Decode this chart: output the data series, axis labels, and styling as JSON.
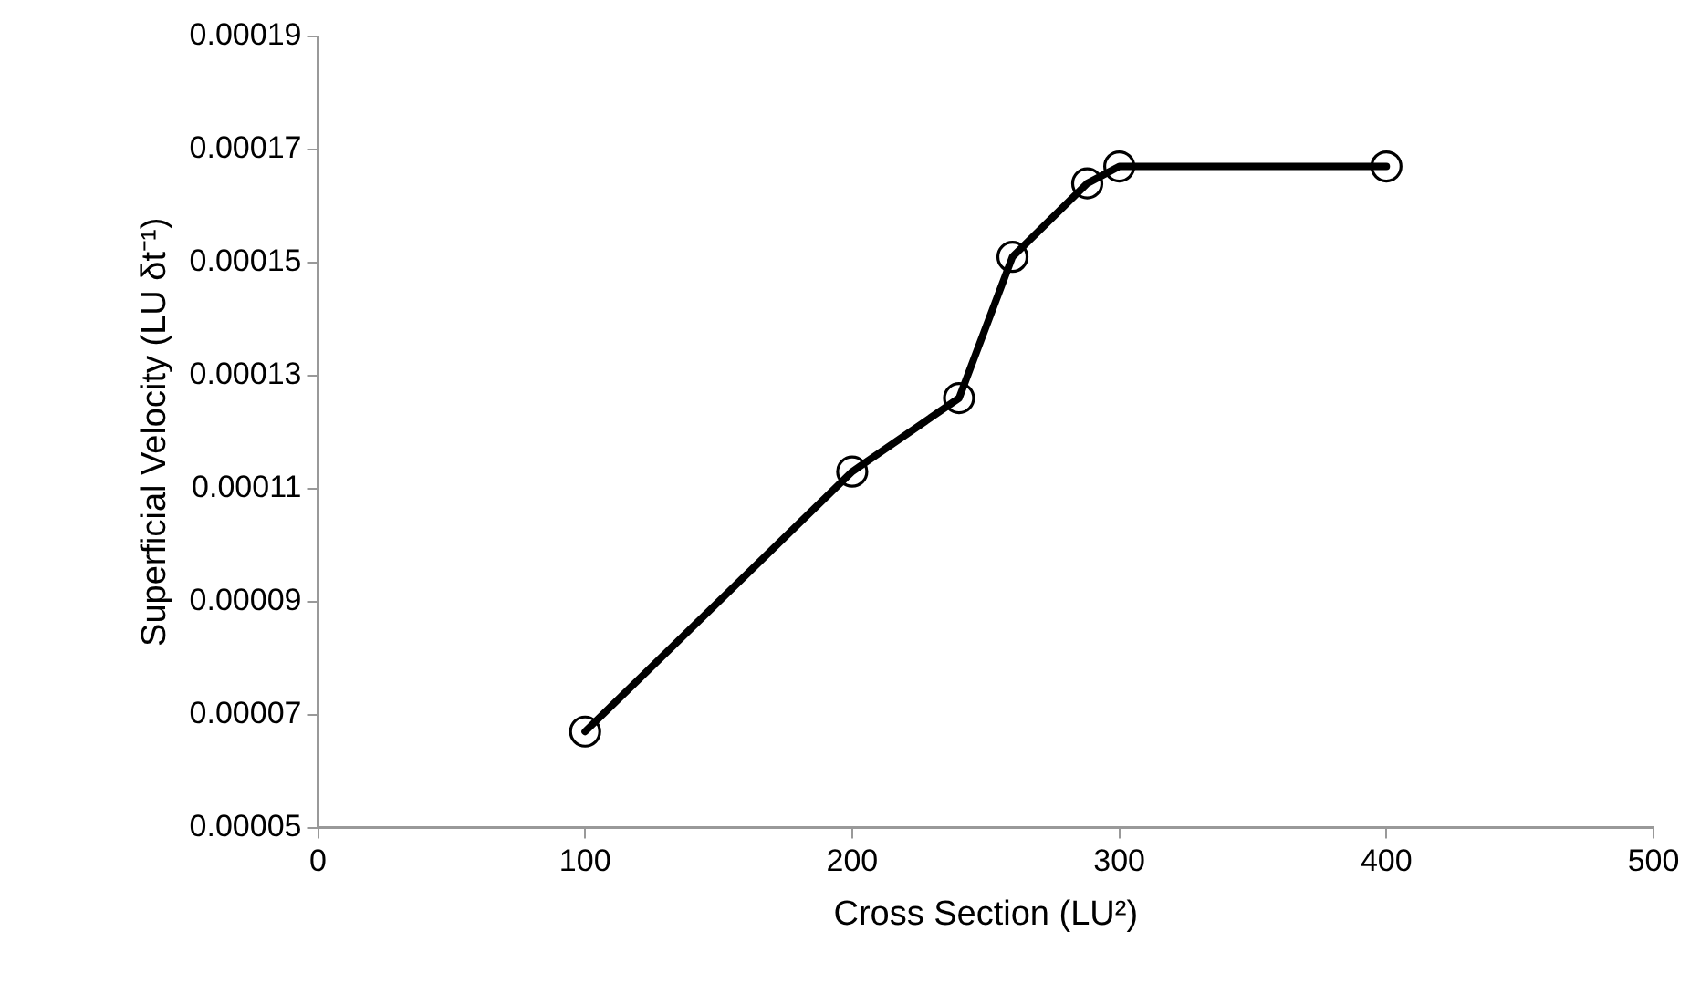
{
  "chart_data": {
    "type": "line",
    "xlabel": "Cross Section (LU²)",
    "ylabel": "Superficial Velocity (LU δt⁻¹)",
    "x": [
      100,
      200,
      240,
      260,
      288,
      300,
      400
    ],
    "series": [
      {
        "color": "#000000",
        "values": [
          6.7e-05,
          0.000113,
          0.000126,
          0.000151,
          0.000164,
          0.000167,
          0.000167
        ]
      }
    ],
    "xlim": [
      0,
      500
    ],
    "xticks": [
      0,
      100,
      200,
      300,
      400,
      500
    ],
    "ylim": [
      5e-05,
      0.00019
    ],
    "yticks": [
      {
        "value": 5e-05,
        "label": "0.00005"
      },
      {
        "value": 7e-05,
        "label": "0.00007"
      },
      {
        "value": 9e-05,
        "label": "0.00009"
      },
      0.00011,
      0.00013,
      0.00015,
      0.00017,
      0.00019
    ],
    "grid": false,
    "legend": false,
    "marker": "circle",
    "line_style": "solid"
  }
}
